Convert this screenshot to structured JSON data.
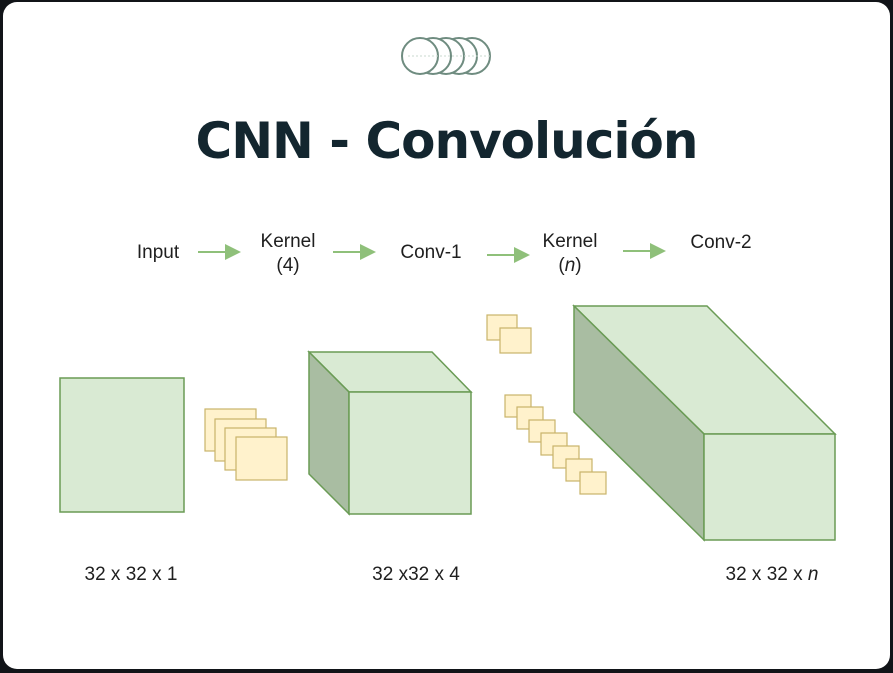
{
  "title": "CNN - Convolución",
  "labels": {
    "input": "Input",
    "kernel1_top": "Kernel",
    "kernel1_bottom": "(4)",
    "conv1": "Conv-1",
    "kernel2_top": "Kernel",
    "kernel2_bottom_open": "(",
    "kernel2_bottom_var": "n",
    "kernel2_bottom_close": ")",
    "conv2": "Conv-2"
  },
  "dimensions": {
    "input": "32 x 32 x 1",
    "conv1": "32 x32 x 4",
    "conv2_prefix": "32 x 32 x ",
    "conv2_var": "n"
  },
  "colors": {
    "title": "#13262f",
    "arrow": "#8fc07a",
    "block_fill": "#d9ead3",
    "block_side": "#a9bda2",
    "block_stroke": "#6a9b55",
    "kernel_fill": "#fff2cc",
    "kernel_stroke": "#c9b36a"
  }
}
